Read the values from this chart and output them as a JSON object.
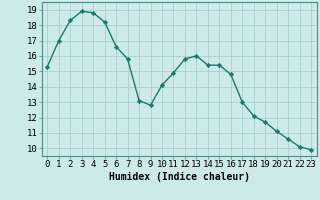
{
  "x": [
    0,
    1,
    2,
    3,
    4,
    5,
    6,
    7,
    8,
    9,
    10,
    11,
    12,
    13,
    14,
    15,
    16,
    17,
    18,
    19,
    20,
    21,
    22,
    23
  ],
  "y": [
    15.3,
    17.0,
    18.3,
    18.9,
    18.8,
    18.2,
    16.6,
    15.8,
    13.1,
    12.8,
    14.1,
    14.9,
    15.8,
    16.0,
    15.4,
    15.4,
    14.8,
    13.0,
    12.1,
    11.7,
    11.1,
    10.6,
    10.1,
    9.9
  ],
  "line_color": "#1a7a6e",
  "marker": "D",
  "marker_size": 2.2,
  "bg_color": "#cdeaea",
  "grid_color": "#aacfcf",
  "xlabel": "Humidex (Indice chaleur)",
  "ylabel_ticks": [
    10,
    11,
    12,
    13,
    14,
    15,
    16,
    17,
    18,
    19
  ],
  "xlim": [
    -0.5,
    23.5
  ],
  "ylim": [
    9.5,
    19.5
  ],
  "xlabel_fontsize": 7,
  "tick_fontsize": 6.5,
  "linewidth": 1.0
}
